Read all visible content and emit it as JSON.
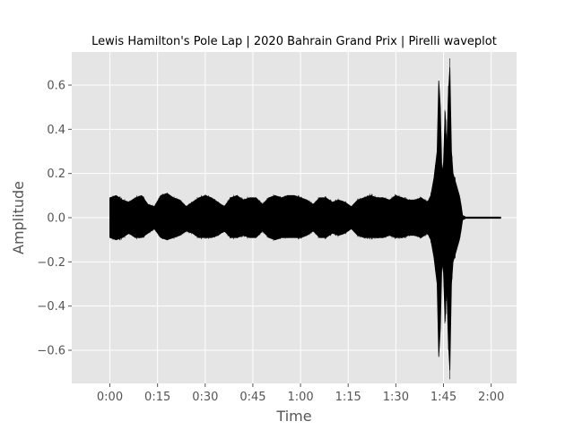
{
  "chart_data": {
    "type": "line",
    "title": "Lewis Hamilton's Pole Lap | 2020 Bahrain Grand Prix | Pirelli waveplot",
    "xlabel": "Time",
    "ylabel": "Amplitude",
    "xlim": [
      -12,
      128
    ],
    "ylim": [
      -0.75,
      0.75
    ],
    "grid": true,
    "background": "#e5e5e5",
    "line_color": "#000000",
    "x_ticks": [
      {
        "value": 0,
        "label": "0:00"
      },
      {
        "value": 15,
        "label": "0:15"
      },
      {
        "value": 30,
        "label": "0:30"
      },
      {
        "value": 45,
        "label": "0:45"
      },
      {
        "value": 60,
        "label": "1:00"
      },
      {
        "value": 75,
        "label": "1:15"
      },
      {
        "value": 90,
        "label": "1:30"
      },
      {
        "value": 105,
        "label": "1:45"
      },
      {
        "value": 120,
        "label": "2:00"
      }
    ],
    "y_ticks": [
      {
        "value": 0.6,
        "label": "0.6"
      },
      {
        "value": 0.4,
        "label": "0.4"
      },
      {
        "value": 0.2,
        "label": "0.2"
      },
      {
        "value": 0.0,
        "label": "0.0"
      },
      {
        "value": -0.2,
        "label": "−0.2"
      },
      {
        "value": -0.4,
        "label": "−0.4"
      },
      {
        "value": -0.6,
        "label": "−0.6"
      }
    ],
    "series": [
      {
        "envelope": {
          "t": [
            0,
            2,
            4,
            6,
            8,
            10,
            12,
            14,
            16,
            18,
            20,
            22,
            24,
            26,
            28,
            30,
            32,
            34,
            36,
            38,
            40,
            42,
            44,
            46,
            48,
            50,
            52,
            54,
            56,
            58,
            60,
            62,
            64,
            66,
            68,
            70,
            72,
            74,
            76,
            78,
            80,
            82,
            84,
            86,
            88,
            90,
            92,
            94,
            96,
            98,
            100,
            101,
            102,
            103,
            103.5,
            104,
            104.5,
            105,
            105.5,
            106,
            106.5,
            107,
            107.5,
            108,
            109,
            110,
            110.5,
            111,
            112,
            114,
            116,
            118,
            120,
            122,
            123
          ],
          "upper": [
            0.09,
            0.1,
            0.08,
            0.07,
            0.09,
            0.1,
            0.06,
            0.05,
            0.1,
            0.11,
            0.09,
            0.08,
            0.05,
            0.07,
            0.09,
            0.1,
            0.09,
            0.07,
            0.05,
            0.09,
            0.1,
            0.08,
            0.09,
            0.09,
            0.06,
            0.09,
            0.1,
            0.09,
            0.1,
            0.1,
            0.09,
            0.08,
            0.06,
            0.09,
            0.09,
            0.07,
            0.08,
            0.07,
            0.05,
            0.08,
            0.09,
            0.1,
            0.09,
            0.09,
            0.08,
            0.1,
            0.09,
            0.08,
            0.08,
            0.09,
            0.07,
            0.1,
            0.18,
            0.3,
            0.62,
            0.5,
            0.2,
            0.25,
            0.48,
            0.3,
            0.55,
            0.68,
            0.3,
            0.2,
            0.15,
            0.1,
            0.06,
            0.01,
            0.003,
            0.003,
            0.003,
            0.003,
            0.003,
            0.003,
            0.003
          ],
          "lower": [
            -0.09,
            -0.1,
            -0.09,
            -0.07,
            -0.09,
            -0.09,
            -0.07,
            -0.05,
            -0.09,
            -0.1,
            -0.09,
            -0.08,
            -0.06,
            -0.07,
            -0.09,
            -0.09,
            -0.09,
            -0.08,
            -0.06,
            -0.09,
            -0.09,
            -0.08,
            -0.09,
            -0.09,
            -0.06,
            -0.09,
            -0.1,
            -0.09,
            -0.09,
            -0.09,
            -0.09,
            -0.08,
            -0.06,
            -0.09,
            -0.09,
            -0.07,
            -0.08,
            -0.07,
            -0.05,
            -0.08,
            -0.09,
            -0.09,
            -0.09,
            -0.09,
            -0.08,
            -0.09,
            -0.09,
            -0.08,
            -0.08,
            -0.09,
            -0.07,
            -0.1,
            -0.18,
            -0.3,
            -0.63,
            -0.5,
            -0.2,
            -0.25,
            -0.47,
            -0.3,
            -0.55,
            -0.69,
            -0.3,
            -0.2,
            -0.15,
            -0.1,
            -0.06,
            -0.01,
            -0.003,
            -0.003,
            -0.003,
            -0.003,
            -0.003,
            -0.003,
            -0.003
          ]
        }
      }
    ]
  }
}
